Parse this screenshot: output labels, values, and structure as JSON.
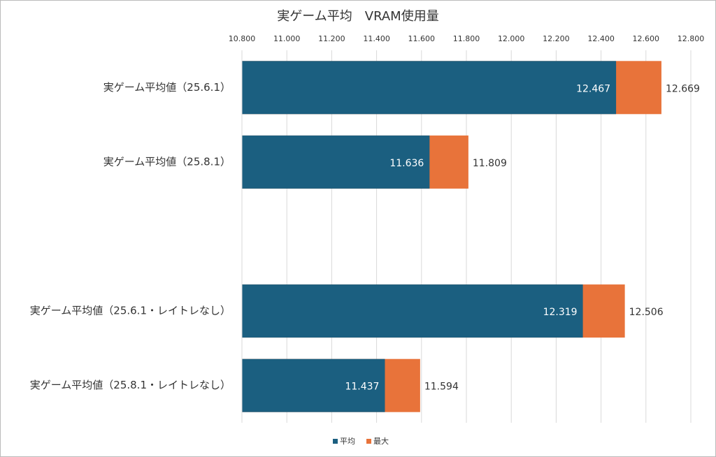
{
  "chart_data": {
    "type": "bar",
    "orientation": "horizontal",
    "title": "実ゲーム平均　VRAM使用量",
    "categories": [
      "実ゲーム平均値（25.6.1）",
      "実ゲーム平均値（25.8.1）",
      null,
      "実ゲーム平均値（25.6.1・レイトレなし）",
      "実ゲーム平均値（25.8.1・レイトレなし）"
    ],
    "series": [
      {
        "name": "平均",
        "color": "#1b5f80",
        "values": [
          12.467,
          11.636,
          null,
          12.319,
          11.437
        ]
      },
      {
        "name": "最大",
        "color": "#e8733a",
        "values": [
          12.669,
          11.809,
          null,
          12.506,
          11.594
        ]
      }
    ],
    "xlim": [
      10.8,
      12.8
    ],
    "xticks": [
      {
        "value": 10.8,
        "label": "10.800"
      },
      {
        "value": 11.0,
        "label": "11.000"
      },
      {
        "value": 11.2,
        "label": "11.200"
      },
      {
        "value": 11.4,
        "label": "11.400"
      },
      {
        "value": 11.6,
        "label": "11.600"
      },
      {
        "value": 11.8,
        "label": "11.800"
      },
      {
        "value": 12.0,
        "label": "12.000"
      },
      {
        "value": 12.2,
        "label": "12.200"
      },
      {
        "value": 12.4,
        "label": "12.400"
      },
      {
        "value": 12.6,
        "label": "12.600"
      },
      {
        "value": 12.8,
        "label": "12.800"
      }
    ],
    "grid": true,
    "legend": "bottom"
  }
}
